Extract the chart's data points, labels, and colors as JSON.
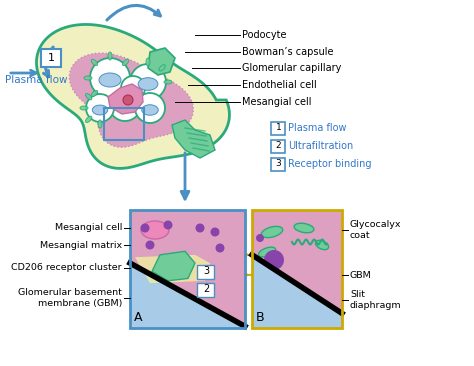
{
  "bg_color": "#ffffff",
  "legend_items": [
    {
      "num": "1",
      "label": "Plasma flow"
    },
    {
      "num": "2",
      "label": "Ultrafiltration"
    },
    {
      "num": "3",
      "label": "Receptor binding"
    }
  ],
  "right_labels": [
    "Podocyte",
    "Bowman’s capsule",
    "Glomerular capillary",
    "Endothelial cell",
    "Mesangial cell"
  ],
  "left_labels_bottom": [
    "Mesangial cell",
    "Mesangial matrix",
    "CD206 receptor cluster",
    "Glomerular basement\nmembrane (GBM)"
  ],
  "right_labels_bottom": [
    "Glycocalyx\ncoat",
    "GBM",
    "Slit\ndiaphragm"
  ],
  "blue": "#4a90c4",
  "green": "#2aaa7a",
  "pink": "#e8a0c8",
  "purple": "#8844aa",
  "cream": "#f0f0c0",
  "lbl_blue": "#3377cc",
  "gold": "#ccaa00",
  "light_blue": "#a8cce8",
  "light_green": "#70cc99"
}
